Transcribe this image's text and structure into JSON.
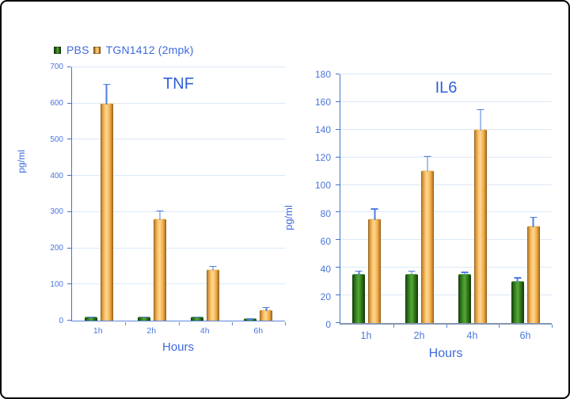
{
  "figure": {
    "background_color": "#ffffff",
    "border_color": "#000000",
    "text_color": "#3d6bdc"
  },
  "legend": {
    "position": "top-left",
    "items": [
      {
        "label": "PBS",
        "color": "#2f7418",
        "swatch": "green-square-icon"
      },
      {
        "label": "TGN1412 (2mpk)",
        "color": "#f5b54f",
        "swatch": "orange-square-icon"
      }
    ]
  },
  "chart_data": [
    {
      "type": "bar",
      "title": "TNF",
      "xlabel": "Hours",
      "ylabel": "pg/ml",
      "categories": [
        "1h",
        "2h",
        "4h",
        "6h"
      ],
      "ylim": [
        0,
        700
      ],
      "ytick_step": 100,
      "grid": true,
      "error_bar_color": "#4f7de0",
      "series": [
        {
          "name": "PBS",
          "color": "#2f7418",
          "values": [
            8,
            8,
            8,
            4
          ],
          "errors": [
            4,
            4,
            4,
            2
          ]
        },
        {
          "name": "TGN1412 (2mpk)",
          "color": "#f5b54f",
          "values": [
            600,
            280,
            140,
            28
          ],
          "errors": [
            55,
            25,
            12,
            10
          ]
        }
      ]
    },
    {
      "type": "bar",
      "title": "IL6",
      "xlabel": "Hours",
      "ylabel": "pg/ml",
      "categories": [
        "1h",
        "2h",
        "4h",
        "6h"
      ],
      "ylim": [
        0,
        180
      ],
      "ytick_step": 20,
      "grid": true,
      "error_bar_color": "#4f7de0",
      "series": [
        {
          "name": "PBS",
          "color": "#2f7418",
          "values": [
            35,
            35,
            35,
            30
          ],
          "errors": [
            3,
            3,
            2,
            3
          ]
        },
        {
          "name": "TGN1412 (2mpk)",
          "color": "#f5b54f",
          "values": [
            75,
            110,
            140,
            70
          ],
          "errors": [
            8,
            11,
            15,
            7
          ]
        }
      ]
    }
  ]
}
